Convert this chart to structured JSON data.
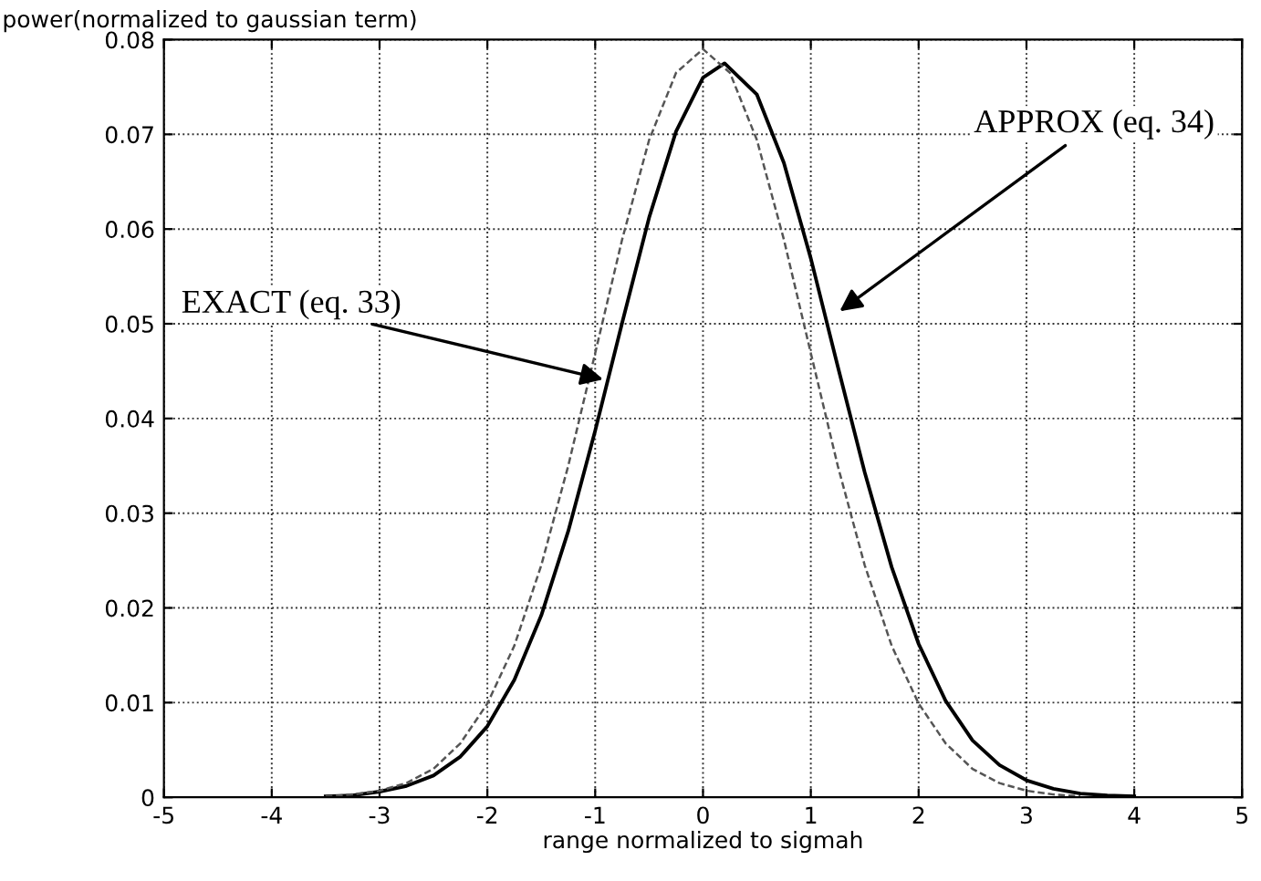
{
  "chart_data": {
    "type": "line",
    "xlabel": "range normalized to sigmah",
    "ylabel": "power(normalized to gaussian term)",
    "xlim": [
      -5,
      5
    ],
    "xticks": [
      -5,
      -4,
      -3,
      -2,
      -1,
      0,
      1,
      2,
      3,
      4,
      5
    ],
    "ylim": [
      0,
      0.08
    ],
    "yticks": [
      0,
      0.01,
      0.02,
      0.03,
      0.04,
      0.05,
      0.06,
      0.07,
      0.08
    ],
    "grid": true,
    "legend": false,
    "marker": "none",
    "series": [
      {
        "color": "#000000",
        "line_style": "solid",
        "x": [
          -3.5,
          -3.25,
          -3,
          -2.75,
          -2.5,
          -2.25,
          -2,
          -1.75,
          -1.5,
          -1.25,
          -1,
          -0.75,
          -0.5,
          -0.25,
          0,
          0.2,
          0.5,
          0.75,
          1,
          1.25,
          1.5,
          1.75,
          2,
          2.25,
          2.5,
          2.75,
          3,
          3.25,
          3.5,
          3.75,
          4
        ],
        "values": [
          0.0001,
          0.0002,
          0.0006,
          0.0012,
          0.0023,
          0.0043,
          0.0075,
          0.0124,
          0.0192,
          0.0281,
          0.0387,
          0.0501,
          0.0612,
          0.0703,
          0.076,
          0.0775,
          0.0742,
          0.067,
          0.0569,
          0.0455,
          0.0343,
          0.0243,
          0.0162,
          0.0102,
          0.006,
          0.0034,
          0.0018,
          0.0009,
          0.0004,
          0.0002,
          0.0001
        ]
      },
      {
        "color": "#555555",
        "line_style": "dashed",
        "x": [
          -3.5,
          -3.25,
          -3,
          -2.75,
          -2.5,
          -2.25,
          -2,
          -1.75,
          -1.5,
          -1.25,
          -1,
          -0.75,
          -0.5,
          -0.25,
          0,
          0.25,
          0.5,
          0.75,
          1,
          1.25,
          1.5,
          1.75,
          2,
          2.25,
          2.5,
          2.75,
          3,
          3.25,
          3.5
        ],
        "values": [
          0.0001,
          0.0003,
          0.0007,
          0.0015,
          0.003,
          0.0057,
          0.0099,
          0.016,
          0.0245,
          0.035,
          0.0469,
          0.0589,
          0.0694,
          0.0765,
          0.079,
          0.0765,
          0.0694,
          0.0589,
          0.0469,
          0.035,
          0.0245,
          0.016,
          0.0099,
          0.0057,
          0.003,
          0.0015,
          0.0007,
          0.0003,
          0.0001
        ]
      }
    ],
    "annotations": [
      {
        "text": "EXACT (eq. 33)",
        "x": -0.88,
        "y": 0.044
      },
      {
        "text": "APPROX (eq. 34)",
        "x": 1.23,
        "y": 0.051
      }
    ]
  }
}
